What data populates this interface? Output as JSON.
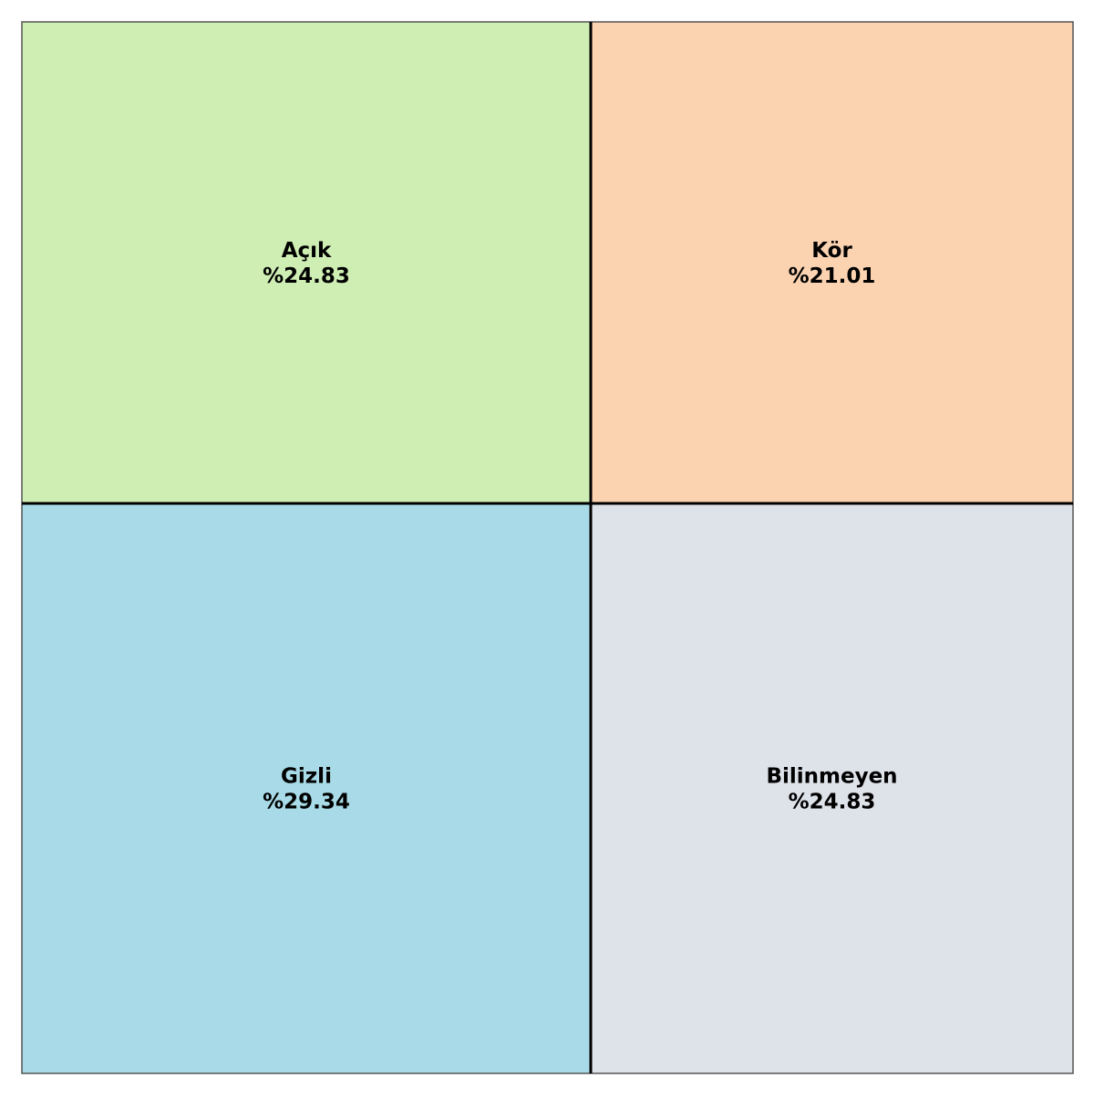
{
  "chart_data": {
    "type": "treemap",
    "quadrants": [
      {
        "name": "Açık",
        "value": 24.83,
        "value_label": "%24.83",
        "color": "#cfeeb4",
        "position": "top-left"
      },
      {
        "name": "Kör",
        "value": 21.01,
        "value_label": "%21.01",
        "color": "#fbd3b1",
        "position": "top-right"
      },
      {
        "name": "Gizli",
        "value": 29.34,
        "value_label": "%29.34",
        "color": "#a8dbe7",
        "position": "bottom-left"
      },
      {
        "name": "Bilinmeyen",
        "value": 24.83,
        "value_label": "%24.83",
        "color": "#dee2e9",
        "position": "bottom-right"
      }
    ],
    "divider_color": "#000000",
    "frame_color": "#555555",
    "grid": false,
    "legend": "none"
  }
}
